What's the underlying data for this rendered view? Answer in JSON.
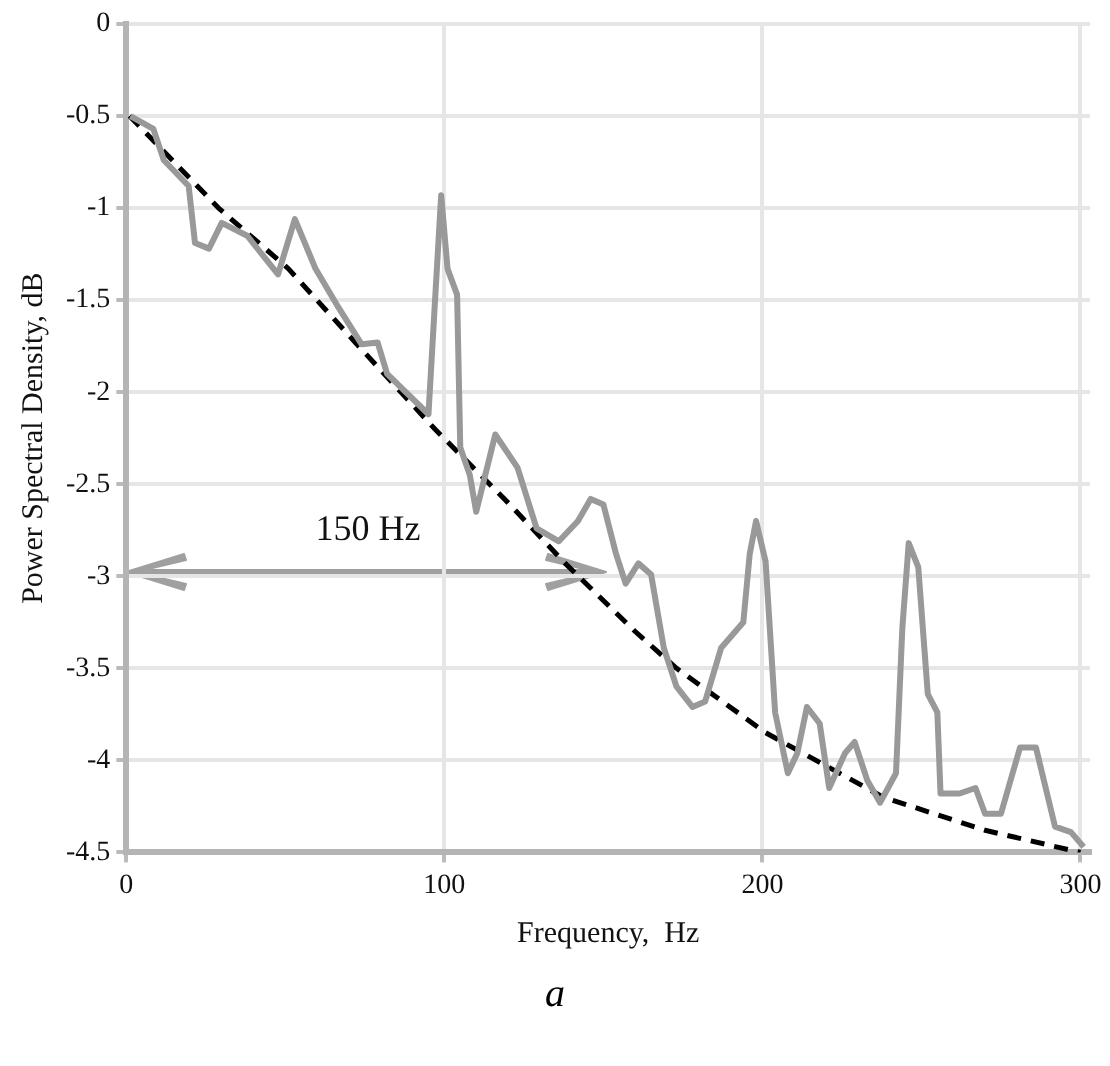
{
  "chart_data": {
    "type": "line",
    "xlabel": "Frequency,  Hz",
    "ylabel": "Power Spectral Density, dB",
    "xlim": [
      0,
      303
    ],
    "ylim": [
      -4.5,
      0
    ],
    "xticks": [
      0,
      100,
      200,
      300
    ],
    "yticks": [
      0,
      -0.5,
      -1,
      -1.5,
      -2,
      -2.5,
      -3,
      -3.5,
      -4,
      -4.5
    ],
    "grid": true,
    "legend": false,
    "marker": "none",
    "series": [
      {
        "color": "#999999",
        "line_style": "solid",
        "x": [
          1.3,
          8.5,
          11.8,
          19.6,
          21.6,
          26,
          30,
          38,
          47.7,
          53,
          59.5,
          66,
          74,
          79,
          82,
          95,
          97,
          99,
          101,
          104,
          105,
          108,
          110,
          116,
          123,
          125,
          129,
          136,
          142,
          146,
          150,
          154,
          157,
          161,
          165,
          169,
          173,
          178,
          182,
          187,
          194,
          196,
          198,
          201,
          204,
          208,
          211,
          214,
          218,
          221,
          226,
          229,
          233,
          237,
          242,
          244,
          246,
          249,
          252,
          255,
          256,
          262,
          267,
          270,
          275,
          281,
          286,
          292,
          297,
          301
        ],
        "values": [
          -0.5,
          -0.57,
          -0.74,
          -0.88,
          -1.19,
          -1.22,
          -1.08,
          -1.15,
          -1.36,
          -1.06,
          -1.33,
          -1.52,
          -1.74,
          -1.73,
          -1.9,
          -2.12,
          -1.52,
          -0.93,
          -1.33,
          -1.47,
          -2.3,
          -2.45,
          -2.65,
          -2.23,
          -2.41,
          -2.52,
          -2.74,
          -2.81,
          -2.7,
          -2.58,
          -2.61,
          -2.88,
          -3.04,
          -2.93,
          -2.99,
          -3.39,
          -3.6,
          -3.71,
          -3.68,
          -3.39,
          -3.25,
          -2.88,
          -2.7,
          -2.92,
          -3.74,
          -4.07,
          -3.96,
          -3.71,
          -3.8,
          -4.15,
          -3.96,
          -3.9,
          -4.11,
          -4.23,
          -4.07,
          -3.28,
          -2.82,
          -2.95,
          -3.64,
          -3.74,
          -4.18,
          -4.18,
          -4.15,
          -4.29,
          -4.29,
          -3.93,
          -3.93,
          -4.36,
          -4.39,
          -4.47
        ]
      },
      {
        "color": "#000000",
        "line_style": "dashed",
        "x": [
          1,
          29,
          51,
          72,
          97,
          120,
          138,
          160,
          173,
          201,
          238,
          270,
          300
        ],
        "values": [
          -0.5,
          -1.0,
          -1.33,
          -1.73,
          -2.2,
          -2.6,
          -2.93,
          -3.3,
          -3.5,
          -3.85,
          -4.2,
          -4.38,
          -4.5
        ]
      }
    ],
    "annotations": [
      "150 Hz",
      "a"
    ]
  }
}
